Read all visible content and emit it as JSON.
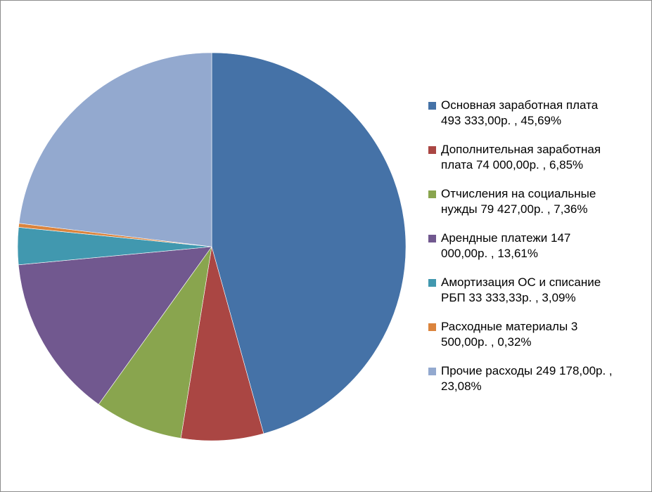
{
  "chart_data": {
    "type": "pie",
    "start_angle_deg": 0,
    "direction": "clockwise",
    "legend_position": "right",
    "slices": [
      {
        "label": "Основная заработная плата",
        "value": 493333.0,
        "value_text": "493 333,00р.",
        "percent": 45.69,
        "percent_text": "45,69%",
        "legend_text": "Основная заработная плата\n493 333,00р.  ,  45,69%",
        "color": "#4572A7"
      },
      {
        "label": "Дополнительная заработная плата",
        "value": 74000.0,
        "value_text": "74 000,00р.",
        "percent": 6.85,
        "percent_text": "6,85%",
        "legend_text": "Дополнительная заработная\nплата  74 000,00р.  , 6,85%",
        "color": "#AA4643"
      },
      {
        "label": "Отчисления на социальные нужды",
        "value": 79427.0,
        "value_text": "79 427,00р.",
        "percent": 7.36,
        "percent_text": "7,36%",
        "legend_text": "Отчисления на социальные\nнужды  79 427,00р.  ,  7,36%",
        "color": "#89A54E"
      },
      {
        "label": "Арендные платежи",
        "value": 147000.0,
        "value_text": "147 000,00р.",
        "percent": 13.61,
        "percent_text": "13,61%",
        "legend_text": "Арендные платежи  147\n000,00р.  ,  13,61%",
        "color": "#71588F"
      },
      {
        "label": "Амортизация ОС и списание РБП",
        "value": 33333.33,
        "value_text": "33 333,33р.",
        "percent": 3.09,
        "percent_text": "3,09%",
        "legend_text": "Амортизация ОС и списание\nРБП  33 333,33р.  ,  3,09%",
        "color": "#4198AF"
      },
      {
        "label": "Расходные материалы",
        "value": 3500.0,
        "value_text": "3 500,00р.",
        "percent": 0.32,
        "percent_text": "0,32%",
        "legend_text": "Расходные материалы  3\n500,00р.  ,  0,32%",
        "color": "#DB843D"
      },
      {
        "label": "Прочие расходы",
        "value": 249178.0,
        "value_text": "249 178,00р.",
        "percent": 23.08,
        "percent_text": "23,08%",
        "legend_text": "Прочие расходы  249 178,00р.  ,\n23,08%",
        "color": "#93A9CF"
      }
    ]
  }
}
